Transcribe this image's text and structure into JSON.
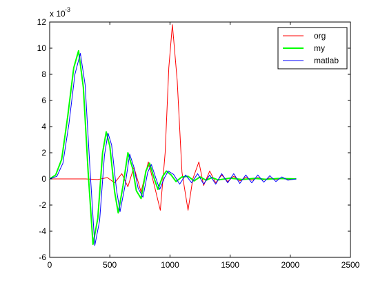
{
  "chart_data": {
    "type": "line",
    "title": "",
    "xlabel": "",
    "ylabel": "",
    "xlim": [
      0,
      2500
    ],
    "ylim": [
      -6,
      12
    ],
    "y_multiplier": "x 10",
    "y_multiplier_exponent": "-3",
    "xticks": [
      0,
      500,
      1000,
      1500,
      2000,
      2500
    ],
    "yticks": [
      -6,
      -4,
      -2,
      0,
      2,
      4,
      6,
      8,
      10,
      12
    ],
    "grid": false,
    "legend_position": "top-right",
    "series": [
      {
        "name": "org",
        "color": "#ff0000",
        "x": [
          0,
          100,
          200,
          300,
          400,
          480,
          540,
          600,
          650,
          700,
          760,
          820,
          870,
          920,
          960,
          990,
          1020,
          1060,
          1100,
          1150,
          1190,
          1240,
          1280,
          1330,
          1380,
          1430,
          1480,
          1530,
          1580,
          1630,
          1680,
          1730,
          1780,
          1830,
          1880,
          1930,
          1980,
          2050
        ],
        "y": [
          0.0,
          0.0,
          0.0,
          0.0,
          -0.05,
          0.1,
          -0.3,
          0.4,
          -0.6,
          0.9,
          -1.0,
          1.3,
          -0.5,
          -2.4,
          2.0,
          8.5,
          11.8,
          7.5,
          0.5,
          -2.4,
          0.0,
          1.3,
          -0.5,
          0.6,
          -0.3,
          0.3,
          -0.2,
          0.2,
          -0.15,
          0.12,
          -0.1,
          0.1,
          -0.08,
          0.07,
          -0.05,
          0.05,
          -0.03,
          0.0
        ]
      },
      {
        "name": "my",
        "color": "#00ff00",
        "x": [
          0,
          50,
          100,
          150,
          200,
          240,
          280,
          320,
          360,
          400,
          440,
          470,
          500,
          540,
          570,
          610,
          650,
          690,
          720,
          760,
          800,
          830,
          870,
          900,
          940,
          970,
          1010,
          1050,
          1100,
          1150,
          1200,
          1250,
          1300,
          1350,
          1400,
          1500,
          1600,
          1700,
          1800,
          1900,
          2050
        ],
        "y": [
          0.0,
          0.3,
          1.5,
          4.8,
          8.5,
          9.8,
          7.0,
          0.5,
          -5.0,
          -3.0,
          2.0,
          3.6,
          2.5,
          -1.0,
          -2.6,
          -0.5,
          2.0,
          0.8,
          -0.9,
          -1.5,
          0.6,
          1.2,
          0.0,
          -0.8,
          0.2,
          0.6,
          0.3,
          -0.2,
          0.15,
          0.2,
          -0.15,
          0.15,
          -0.1,
          0.1,
          -0.08,
          0.06,
          -0.05,
          0.04,
          -0.03,
          0.03,
          0.0
        ]
      },
      {
        "name": "matlab",
        "color": "#0000ff",
        "x": [
          0,
          60,
          110,
          160,
          210,
          255,
          295,
          335,
          375,
          415,
          455,
          485,
          515,
          555,
          585,
          625,
          665,
          700,
          735,
          775,
          815,
          845,
          885,
          915,
          955,
          985,
          1030,
          1080,
          1130,
          1180,
          1230,
          1280,
          1330,
          1380,
          1430,
          1480,
          1530,
          1580,
          1630,
          1680,
          1730,
          1780,
          1830,
          1880,
          1930,
          1980,
          2050
        ],
        "y": [
          0.0,
          0.2,
          1.2,
          4.2,
          8.0,
          9.6,
          7.2,
          0.8,
          -5.1,
          -3.2,
          1.8,
          3.5,
          2.6,
          -0.8,
          -2.5,
          -0.6,
          1.9,
          0.9,
          -0.7,
          -1.4,
          0.5,
          1.1,
          0.0,
          -0.8,
          0.1,
          0.6,
          0.35,
          -0.4,
          0.3,
          -0.3,
          0.4,
          -0.4,
          0.3,
          -0.4,
          0.4,
          -0.3,
          0.4,
          -0.35,
          0.3,
          -0.3,
          0.3,
          -0.25,
          0.25,
          -0.2,
          0.15,
          -0.1,
          0.0
        ]
      }
    ]
  }
}
